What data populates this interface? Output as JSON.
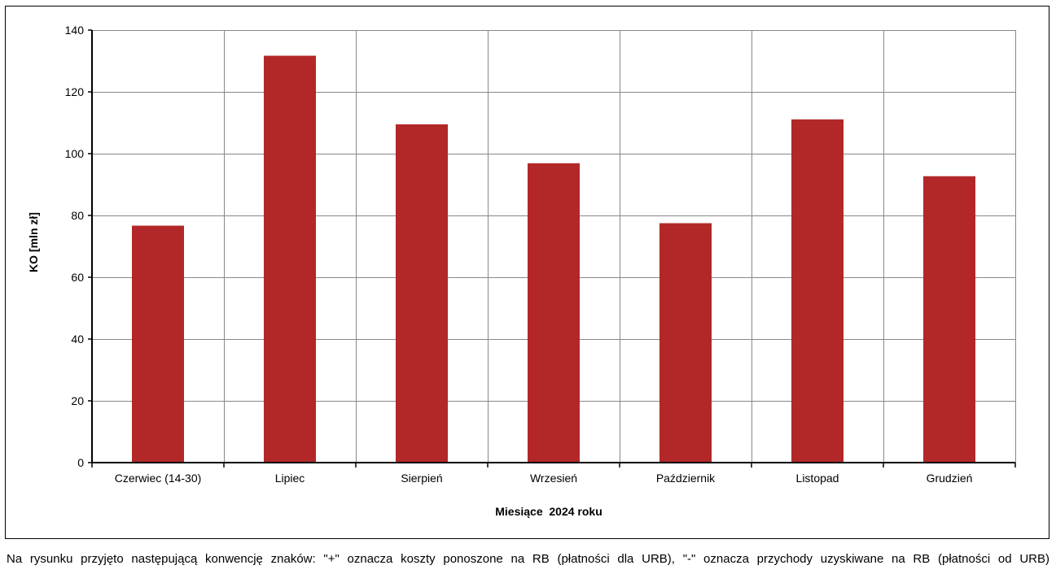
{
  "chart_data": {
    "type": "bar",
    "title": "",
    "xlabel": "Miesiące  2024 roku",
    "ylabel": "KO [mln zł]",
    "categories": [
      "Czerwiec (14-30)",
      "Lipiec",
      "Sierpień",
      "Wrzesień",
      "Październik",
      "Listopad",
      "Grudzień"
    ],
    "values": [
      76.7,
      131.7,
      109.5,
      96.9,
      77.5,
      111.1,
      92.7
    ],
    "ylim": [
      0,
      140
    ],
    "yticks": [
      0,
      20,
      40,
      60,
      80,
      100,
      120,
      140
    ],
    "bar_color": "#b22828",
    "grid": true,
    "legend": "none"
  },
  "footnote": "Na rysunku przyjęto następującą konwencję znaków: \"+\" oznacza koszty ponoszone na RB (płatności dla URB), \"-\" oznacza przychody uzyskiwane na RB (płatności od URB)"
}
